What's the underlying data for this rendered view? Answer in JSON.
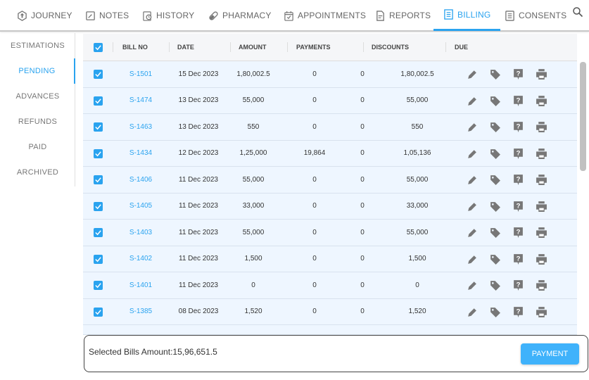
{
  "nav": {
    "tabs": [
      {
        "label": "JOURNEY",
        "icon": "journey-icon"
      },
      {
        "label": "NOTES",
        "icon": "notes-icon"
      },
      {
        "label": "HISTORY",
        "icon": "history-icon"
      },
      {
        "label": "PHARMACY",
        "icon": "pill-icon"
      },
      {
        "label": "APPOINTMENTS",
        "icon": "calendar-check-icon"
      },
      {
        "label": "REPORTS",
        "icon": "report-icon"
      },
      {
        "label": "BILLING",
        "icon": "billing-icon",
        "active": true
      },
      {
        "label": "CONSENTS",
        "icon": "consent-icon"
      }
    ],
    "search_icon": "search-icon"
  },
  "sidebar": {
    "items": [
      "ESTIMATIONS",
      "PENDING",
      "ADVANCES",
      "REFUNDS",
      "PAID",
      "ARCHIVED"
    ],
    "active": "PENDING"
  },
  "table": {
    "headers": [
      "BILL NO",
      "DATE",
      "AMOUNT",
      "PAYMENTS",
      "DISCOUNTS",
      "DUE"
    ],
    "rows": [
      {
        "bill": "S-1501",
        "date": "15 Dec 2023",
        "amount": "1,80,002.5",
        "payments": "0",
        "discounts": "0",
        "due": "1,80,002.5"
      },
      {
        "bill": "S-1474",
        "date": "13 Dec 2023",
        "amount": "55,000",
        "payments": "0",
        "discounts": "0",
        "due": "55,000"
      },
      {
        "bill": "S-1463",
        "date": "13 Dec 2023",
        "amount": "550",
        "payments": "0",
        "discounts": "0",
        "due": "550"
      },
      {
        "bill": "S-1434",
        "date": "12 Dec 2023",
        "amount": "1,25,000",
        "payments": "19,864",
        "discounts": "0",
        "due": "1,05,136"
      },
      {
        "bill": "S-1406",
        "date": "11 Dec 2023",
        "amount": "55,000",
        "payments": "0",
        "discounts": "0",
        "due": "55,000"
      },
      {
        "bill": "S-1405",
        "date": "11 Dec 2023",
        "amount": "33,000",
        "payments": "0",
        "discounts": "0",
        "due": "33,000"
      },
      {
        "bill": "S-1403",
        "date": "11 Dec 2023",
        "amount": "55,000",
        "payments": "0",
        "discounts": "0",
        "due": "55,000"
      },
      {
        "bill": "S-1402",
        "date": "11 Dec 2023",
        "amount": "1,500",
        "payments": "0",
        "discounts": "0",
        "due": "1,500"
      },
      {
        "bill": "S-1401",
        "date": "11 Dec 2023",
        "amount": "0",
        "payments": "0",
        "discounts": "0",
        "due": "0"
      },
      {
        "bill": "S-1385",
        "date": "08 Dec 2023",
        "amount": "1,520",
        "payments": "0",
        "discounts": "0",
        "due": "1,520"
      }
    ]
  },
  "footer": {
    "selected_text": "Selected Bills Amount:15,96,651.5",
    "payment_label": "PAYMENT"
  },
  "colors": {
    "accent": "#2aa3ef",
    "row_bg": "#eef6ff"
  }
}
